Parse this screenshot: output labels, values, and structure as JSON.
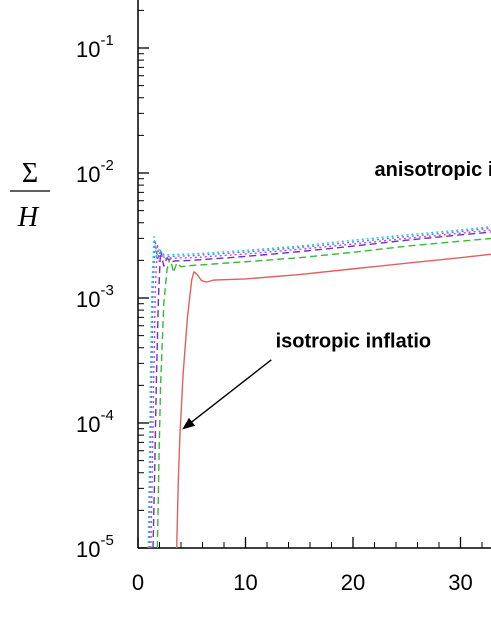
{
  "chart_data": {
    "type": "line",
    "title": "",
    "xlabel": "",
    "ylabel": {
      "numerator": "Σ",
      "denominator": "H"
    },
    "xlim": [
      0,
      35
    ],
    "ylim": [
      1e-05,
      1
    ],
    "yscale": "log",
    "x_ticks": [
      "0",
      "10",
      "20",
      "30"
    ],
    "y_ticks": [
      {
        "base": "10",
        "exp": "-1"
      },
      {
        "base": "10",
        "exp": "-2"
      },
      {
        "base": "10",
        "exp": "-3"
      },
      {
        "base": "10",
        "exp": "-4"
      },
      {
        "base": "10",
        "exp": "-5"
      }
    ],
    "grid": false,
    "legend": "none",
    "annotations": [
      {
        "text": "anisotropic inf",
        "at": {
          "x": 22,
          "y": 0.0095
        }
      },
      {
        "text": "isotropic inflatio",
        "arrow_from": {
          "x": 12.4,
          "y": 0.00032
        },
        "arrow_to": {
          "x": 4.2,
          "y": 9e-05
        },
        "at": {
          "x": 12.8,
          "y": 0.0004
        }
      }
    ],
    "series": [
      {
        "color": "#e06060",
        "style": "solid",
        "x": [
          3.6,
          3.75,
          3.9,
          4.2,
          4.6,
          5.0,
          5.2,
          5.5,
          5.9,
          6.4,
          7.0,
          8.0,
          10,
          15,
          20,
          25,
          30,
          35
        ],
        "y": [
          1e-05,
          3.5e-05,
          8e-05,
          0.00025,
          0.0007,
          0.0014,
          0.00162,
          0.00154,
          0.00138,
          0.00134,
          0.00139,
          0.0014,
          0.00142,
          0.00154,
          0.00171,
          0.0019,
          0.0021,
          0.00235
        ]
      },
      {
        "color": "#33bb33",
        "style": "dashed",
        "x": [
          1.8,
          1.95,
          2.1,
          2.4,
          2.7,
          3.0,
          3.3,
          3.6,
          4.0,
          5,
          10,
          15,
          20,
          25,
          30,
          35
        ],
        "y": [
          1e-05,
          5e-05,
          0.0002,
          0.0009,
          0.0017,
          0.0021,
          0.0016,
          0.0019,
          0.00178,
          0.00182,
          0.00195,
          0.0021,
          0.00232,
          0.0026,
          0.00285,
          0.0031
        ]
      },
      {
        "color": "#6633cc",
        "style": "dashed",
        "x": [
          1.4,
          1.55,
          1.7,
          1.9,
          2.1,
          2.4,
          2.7,
          3.0,
          3.5,
          5,
          10,
          15,
          20,
          25,
          30,
          35
        ],
        "y": [
          1e-05,
          4e-05,
          0.0002,
          0.001,
          0.0024,
          0.0018,
          0.0021,
          0.00195,
          0.00198,
          0.002,
          0.00215,
          0.00235,
          0.0026,
          0.0029,
          0.0032,
          0.0035
        ]
      },
      {
        "color": "#cc44cc",
        "style": "dotted",
        "x": [
          1.2,
          1.32,
          1.45,
          1.6,
          1.8,
          2.0,
          2.3,
          2.6,
          3.0,
          5,
          10,
          15,
          20,
          25,
          30,
          35
        ],
        "y": [
          1e-05,
          4e-05,
          0.0002,
          0.0011,
          0.0027,
          0.0019,
          0.0023,
          0.00205,
          0.00208,
          0.0021,
          0.00225,
          0.00245,
          0.0027,
          0.003,
          0.0033,
          0.00365
        ]
      },
      {
        "color": "#5577ff",
        "style": "dotted",
        "x": [
          1.05,
          1.15,
          1.27,
          1.4,
          1.6,
          1.8,
          2.1,
          2.4,
          2.8,
          5,
          10,
          15,
          20,
          25,
          30,
          35
        ],
        "y": [
          1e-05,
          4e-05,
          0.0002,
          0.0012,
          0.0029,
          0.002,
          0.0024,
          0.00212,
          0.00215,
          0.00218,
          0.00233,
          0.00253,
          0.0028,
          0.0031,
          0.0034,
          0.0038
        ]
      },
      {
        "color": "#22cccc",
        "style": "dotted",
        "x": [
          0.95,
          1.05,
          1.15,
          1.3,
          1.5,
          1.7,
          2.0,
          2.3,
          2.7,
          5,
          10,
          15,
          20,
          25,
          30,
          35
        ],
        "y": [
          1e-05,
          4e-05,
          0.0002,
          0.0013,
          0.0031,
          0.0021,
          0.0025,
          0.0022,
          0.00222,
          0.00225,
          0.0024,
          0.0026,
          0.0029,
          0.0032,
          0.0035,
          0.0039
        ]
      }
    ]
  }
}
